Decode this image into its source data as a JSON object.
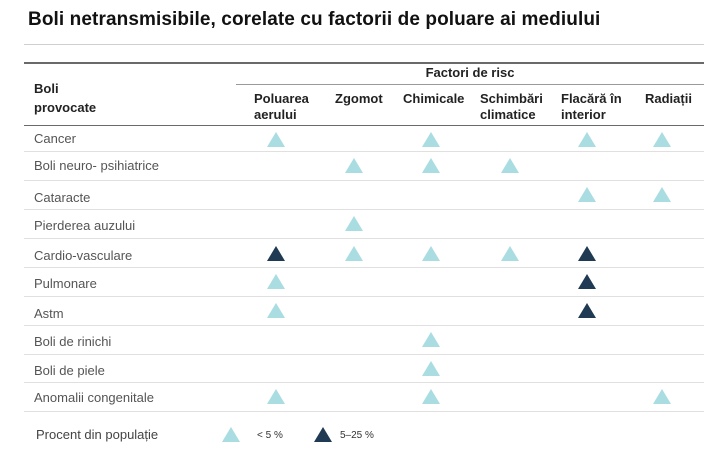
{
  "title": "Boli netransmisibile, corelate cu factorii de poluare ai mediului",
  "header": {
    "disease_col": [
      "Boli",
      "provocate"
    ],
    "factors_group": "Factori de risc",
    "columns": [
      {
        "key": "poluare",
        "lines": [
          "Poluarea",
          "aerului"
        ]
      },
      {
        "key": "zgomot",
        "lines": [
          "Zgomot"
        ]
      },
      {
        "key": "chimicale",
        "lines": [
          "Chimicale"
        ]
      },
      {
        "key": "climatice",
        "lines": [
          "Schimbări",
          "climatice"
        ]
      },
      {
        "key": "flacara",
        "lines": [
          "Flacără în",
          "interior"
        ]
      },
      {
        "key": "radiatii",
        "lines": [
          "Radiații"
        ]
      }
    ]
  },
  "rows": [
    {
      "label": "Cancer",
      "marks": [
        "light",
        null,
        "light",
        null,
        "light",
        "light"
      ]
    },
    {
      "label": "Boli neuro- psihiatrice",
      "marks": [
        null,
        "light",
        "light",
        "light",
        null,
        null
      ]
    },
    {
      "label": "Cataracte",
      "marks": [
        null,
        null,
        null,
        null,
        "light",
        "light"
      ]
    },
    {
      "label": "Pierderea auzului",
      "marks": [
        null,
        "light",
        null,
        null,
        null,
        null
      ]
    },
    {
      "label": "Cardio-vasculare",
      "marks": [
        "dark",
        "light",
        "light",
        "light",
        "dark",
        null
      ]
    },
    {
      "label": "Pulmonare",
      "marks": [
        "light",
        null,
        null,
        null,
        "dark",
        null
      ]
    },
    {
      "label": "Astm",
      "marks": [
        "light",
        null,
        null,
        null,
        "dark",
        null
      ]
    },
    {
      "label": "Boli de rinichi",
      "marks": [
        null,
        null,
        "light",
        null,
        null,
        null
      ]
    },
    {
      "label": "Boli de piele",
      "marks": [
        null,
        null,
        "light",
        null,
        null,
        null
      ]
    },
    {
      "label": "Anomalii congenitale",
      "marks": [
        "light",
        null,
        "light",
        null,
        null,
        "light"
      ]
    }
  ],
  "legend": {
    "label": "Procent din populație",
    "items": [
      {
        "kind": "light",
        "text": "< 5 %"
      },
      {
        "kind": "dark",
        "text": "5–25 %"
      }
    ]
  },
  "colors": {
    "light": "#a9dde1",
    "dark": "#1f3a52"
  }
}
